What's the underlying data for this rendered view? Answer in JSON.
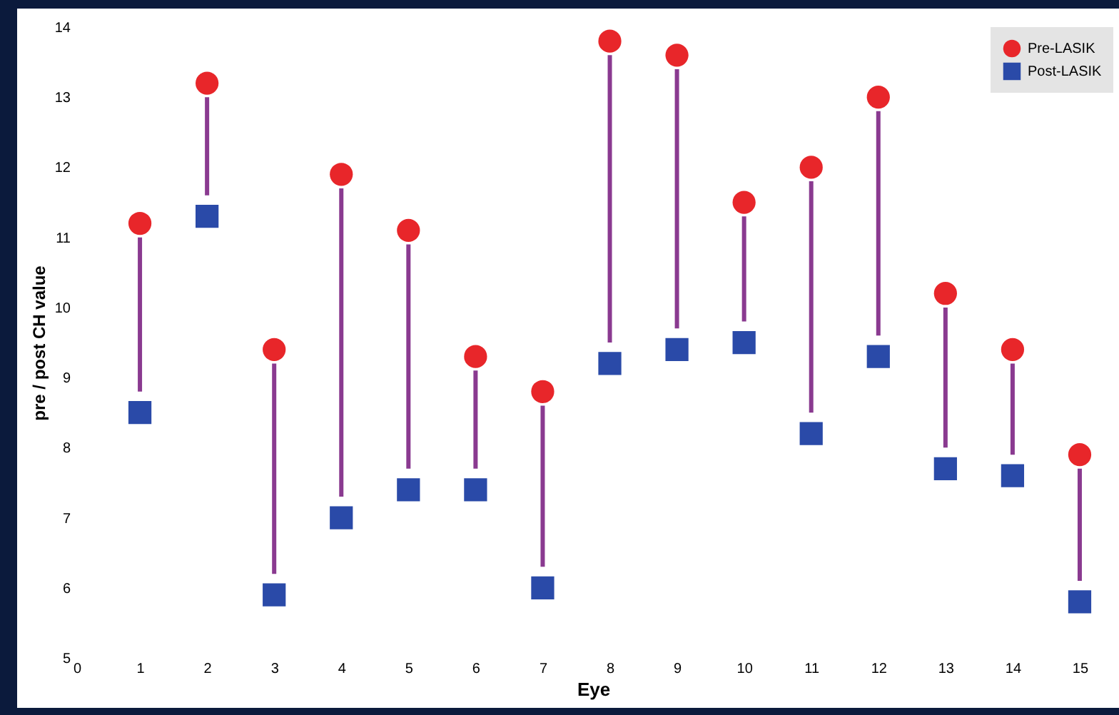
{
  "chart_data": {
    "type": "scatter",
    "xlabel": "Eye",
    "ylabel": "pre / post CH value",
    "x": [
      1,
      2,
      3,
      4,
      5,
      6,
      7,
      8,
      9,
      10,
      11,
      12,
      13,
      14,
      15
    ],
    "xlim": [
      0,
      15.5
    ],
    "xticks": [
      0,
      1,
      2,
      3,
      4,
      5,
      6,
      7,
      8,
      9,
      10,
      11,
      12,
      13,
      14,
      15
    ],
    "ylim": [
      5,
      14
    ],
    "yticks": [
      5,
      6,
      7,
      8,
      9,
      10,
      11,
      12,
      13,
      14
    ],
    "grid": false,
    "legend": "top right",
    "series": [
      {
        "name": "Pre-LASIK",
        "color": "#e8262a",
        "marker": "circle",
        "values": [
          11.2,
          13.2,
          9.4,
          11.9,
          11.1,
          9.3,
          8.8,
          13.8,
          13.6,
          11.5,
          12.0,
          13.0,
          10.2,
          9.4,
          7.9
        ],
        "errors": [
          [
            8.8,
            11.0
          ],
          [
            11.6,
            13.0
          ],
          [
            6.2,
            9.2
          ],
          [
            7.3,
            11.7
          ],
          [
            7.7,
            10.9
          ],
          [
            7.7,
            9.1
          ],
          [
            6.3,
            8.6
          ],
          [
            9.5,
            13.6
          ],
          [
            9.7,
            13.4
          ],
          [
            9.8,
            11.3
          ],
          [
            8.5,
            11.8
          ],
          [
            9.6,
            12.8
          ],
          [
            8.0,
            10.0
          ],
          [
            7.9,
            9.2
          ],
          [
            6.1,
            7.7
          ]
        ]
      },
      {
        "name": "Post-LASIK",
        "color": "#2a4aa8",
        "marker": "square",
        "values": [
          8.5,
          11.3,
          5.9,
          7.0,
          7.4,
          7.4,
          6.0,
          9.2,
          9.4,
          9.5,
          8.2,
          9.3,
          7.7,
          7.6,
          5.8
        ]
      }
    ]
  }
}
